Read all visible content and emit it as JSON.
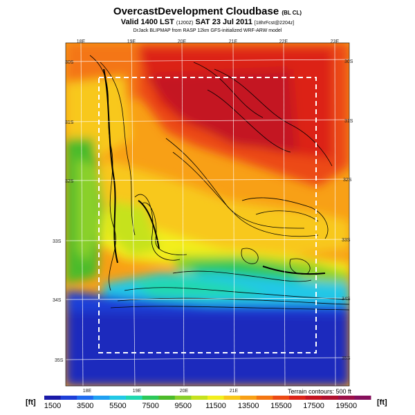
{
  "title": {
    "main": "OvercastDevelopment Cloudbase",
    "main_suffix": "(BL CL)",
    "valid": "Valid 1400 LST",
    "valid_utc": "(1200Z)",
    "valid_date": "SAT 23 Jul 2011",
    "forecast": "[18hrFcst@2204z]",
    "credit": "DrJack BLIPMAP from RASP 12km GFS-initialized WRF-ARW model"
  },
  "map": {
    "lon_labels_top": [
      "18E",
      "19E",
      "20E",
      "21E",
      "22E",
      "23E"
    ],
    "lon_labels_bottom": [
      "18E",
      "19E",
      "20E",
      "21E"
    ],
    "lat_labels_right": [
      "30S",
      "31S",
      "32S",
      "33S",
      "34S",
      "35S"
    ],
    "lat_labels_left": [
      "30S",
      "31S",
      "32S",
      "33S",
      "34S",
      "35S"
    ],
    "terrain_note": "Terrain contours: 500 ft"
  },
  "colorbar": {
    "unit_left": "[ft]",
    "unit_right": "[ft]",
    "labels": [
      "1500",
      "3500",
      "5500",
      "7500",
      "9500",
      "11500",
      "13500",
      "15500",
      "17500",
      "19500"
    ],
    "colors": [
      "#1a1aa8",
      "#1e3fd8",
      "#1f6cf0",
      "#1fa0f2",
      "#22c8e6",
      "#20d8b0",
      "#2cc85a",
      "#4cbb2a",
      "#8ad02a",
      "#c6e21e",
      "#f2ee1c",
      "#f8c81a",
      "#f8a016",
      "#f47612",
      "#ec4a14",
      "#dc2418",
      "#c41420",
      "#b0102e",
      "#9c1048",
      "#86105c"
    ]
  }
}
